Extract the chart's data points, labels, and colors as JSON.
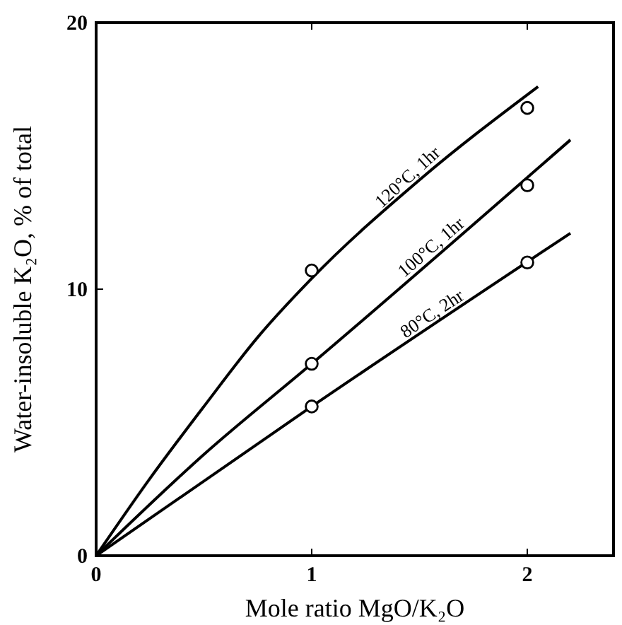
{
  "chart_data": {
    "type": "line",
    "xlabel": "Mole ratio MgO/K₂O",
    "ylabel": "Water-insoluble K₂O, % of total",
    "xlim": [
      0,
      2.4
    ],
    "ylim": [
      0,
      20
    ],
    "xticks": [
      0,
      1,
      2
    ],
    "yticks": [
      0,
      10,
      20
    ],
    "grid": false,
    "marker": "none",
    "line_style": "solid",
    "series": [
      {
        "name": "120°C, 1hr",
        "color": "#000000",
        "x": [
          0,
          0.25,
          0.5,
          0.75,
          1,
          1.5,
          2.05
        ],
        "values": [
          0,
          2.9,
          5.6,
          8.2,
          10.4,
          14.1,
          17.6
        ]
      },
      {
        "name": "100°C, 1hr",
        "color": "#000000",
        "x": [
          0,
          0.5,
          1,
          2.2
        ],
        "values": [
          0,
          3.8,
          7.2,
          15.6
        ]
      },
      {
        "name": "80°C, 2hr",
        "color": "#000000",
        "x": [
          0,
          1,
          2.2
        ],
        "values": [
          0,
          5.6,
          12.1
        ]
      },
      {
        "type": "scatter",
        "marker": "circle",
        "color": "#000000",
        "x": [
          1,
          2,
          1,
          2,
          1,
          2
        ],
        "values": [
          10.7,
          16.8,
          7.2,
          13.9,
          5.6,
          11.0
        ]
      }
    ]
  }
}
